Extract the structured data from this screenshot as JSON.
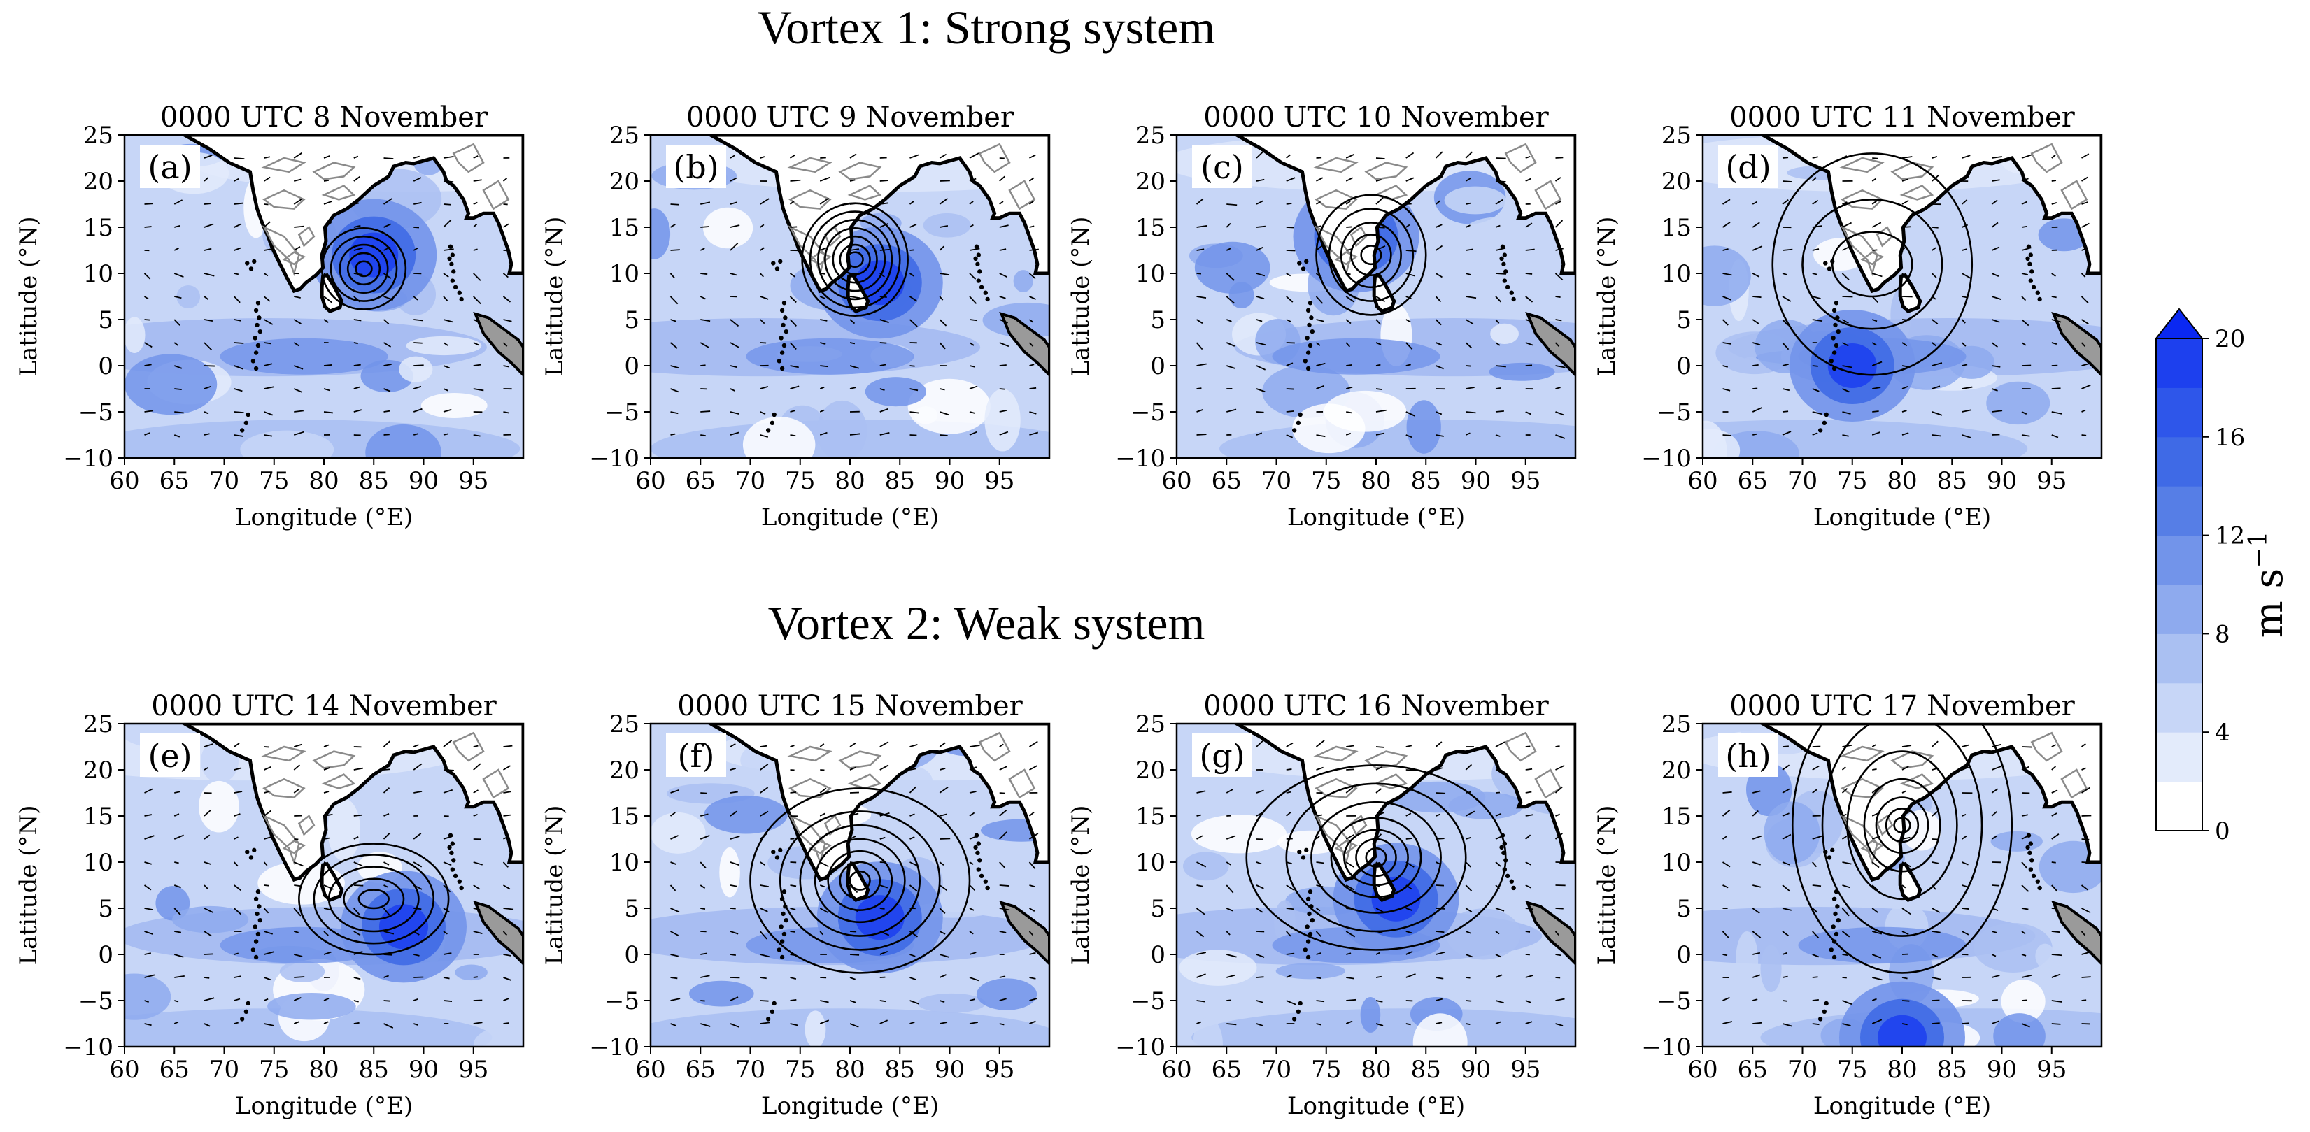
{
  "figure": {
    "row_titles": [
      "Vortex 1: Strong system",
      "Vortex 2: Weak system"
    ]
  },
  "chart_data": {
    "type": "heatmap",
    "xlabel": "Longitude (°E)",
    "ylabel": "Latitude (°N)",
    "xlim": [
      60,
      100
    ],
    "ylim": [
      -10,
      25
    ],
    "xticks": [
      60,
      65,
      70,
      75,
      80,
      85,
      90,
      95
    ],
    "yticks": [
      -10,
      -5,
      0,
      5,
      10,
      15,
      20,
      25
    ],
    "colorbar": {
      "label": "m s",
      "label_exponent": "−1",
      "ticks": [
        0,
        4,
        8,
        12,
        16,
        20
      ],
      "levels": [
        0,
        2,
        4,
        6,
        8,
        10,
        12,
        14,
        16,
        18,
        20
      ],
      "extend": "max",
      "colors": [
        "#ffffff",
        "#e3ebfb",
        "#c7d6f7",
        "#aac0f2",
        "#8eaaee",
        "#7294ea",
        "#567ee6",
        "#3f6ae6",
        "#2e56ea",
        "#1d40ee",
        "#0a28f2"
      ]
    },
    "panels": [
      {
        "label": "(a)",
        "title": "0000 UTC 8  November",
        "row": 0,
        "col": 0,
        "contour_center": [
          84,
          10.5
        ],
        "contour_radii": [
          [
            0.8,
            0.8
          ],
          [
            1.6,
            1.7
          ],
          [
            2.4,
            2.6
          ],
          [
            3.3,
            3.5
          ],
          [
            4.2,
            4.4
          ]
        ],
        "shading_center": [
          85,
          12
        ]
      },
      {
        "label": "(b)",
        "title": "0000 UTC 9  November",
        "row": 0,
        "col": 1,
        "contour_center": [
          80.5,
          11.5
        ],
        "contour_radii": [
          [
            0.8,
            0.8
          ],
          [
            1.5,
            1.6
          ],
          [
            2.2,
            2.5
          ],
          [
            3,
            3.4
          ],
          [
            3.7,
            4.3
          ],
          [
            4.5,
            5.2
          ],
          [
            5.3,
            6.1
          ]
        ],
        "shading_center": [
          83,
          9
        ]
      },
      {
        "label": "(c)",
        "title": "0000 UTC 10  November",
        "row": 0,
        "col": 2,
        "contour_center": [
          79.5,
          12
        ],
        "contour_radii": [
          [
            1,
            1
          ],
          [
            2,
            2.2
          ],
          [
            3,
            3.5
          ],
          [
            4.2,
            5
          ],
          [
            5.5,
            6.5
          ]
        ],
        "shading_center": [
          78,
          14
        ]
      },
      {
        "label": "(d)",
        "title": "0000 UTC 11  November",
        "row": 0,
        "col": 3,
        "contour_center": [
          77,
          11
        ],
        "contour_radii": [
          [
            4,
            3.5
          ],
          [
            7,
            7
          ],
          [
            10,
            12
          ]
        ],
        "shading_center": [
          75,
          0
        ]
      },
      {
        "label": "(e)",
        "title": "0000 UTC 14  November",
        "row": 1,
        "col": 0,
        "contour_center": [
          85,
          6
        ],
        "contour_radii": [
          [
            1.5,
            1
          ],
          [
            3,
            2.2
          ],
          [
            4.5,
            3.5
          ],
          [
            6,
            4.8
          ],
          [
            7.5,
            6
          ]
        ],
        "shading_center": [
          88,
          3
        ]
      },
      {
        "label": "(f)",
        "title": "0000 UTC 15  November",
        "row": 1,
        "col": 1,
        "contour_center": [
          81,
          8
        ],
        "contour_radii": [
          [
            1,
            1
          ],
          [
            2,
            2
          ],
          [
            3.2,
            3.2
          ],
          [
            4.5,
            4.5
          ],
          [
            6,
            6
          ],
          [
            8,
            7.5
          ],
          [
            11,
            10
          ]
        ],
        "shading_center": [
          83,
          4
        ]
      },
      {
        "label": "(g)",
        "title": "0000 UTC 16  November",
        "row": 1,
        "col": 2,
        "contour_center": [
          80,
          10.5
        ],
        "contour_radii": [
          [
            1,
            1
          ],
          [
            2,
            2
          ],
          [
            3.2,
            3
          ],
          [
            4.5,
            4.3
          ],
          [
            6.5,
            6
          ],
          [
            9,
            8
          ],
          [
            13,
            10
          ]
        ],
        "shading_center": [
          82,
          6
        ]
      },
      {
        "label": "(h)",
        "title": "0000 UTC 17  November",
        "row": 1,
        "col": 3,
        "contour_center": [
          80,
          14
        ],
        "contour_radii": [
          [
            0.8,
            0.8
          ],
          [
            1.6,
            1.8
          ],
          [
            2.6,
            3
          ],
          [
            3.8,
            5
          ],
          [
            5.5,
            8
          ],
          [
            8,
            12
          ],
          [
            11,
            16
          ]
        ],
        "shading_center": [
          80,
          -9
        ]
      }
    ]
  }
}
